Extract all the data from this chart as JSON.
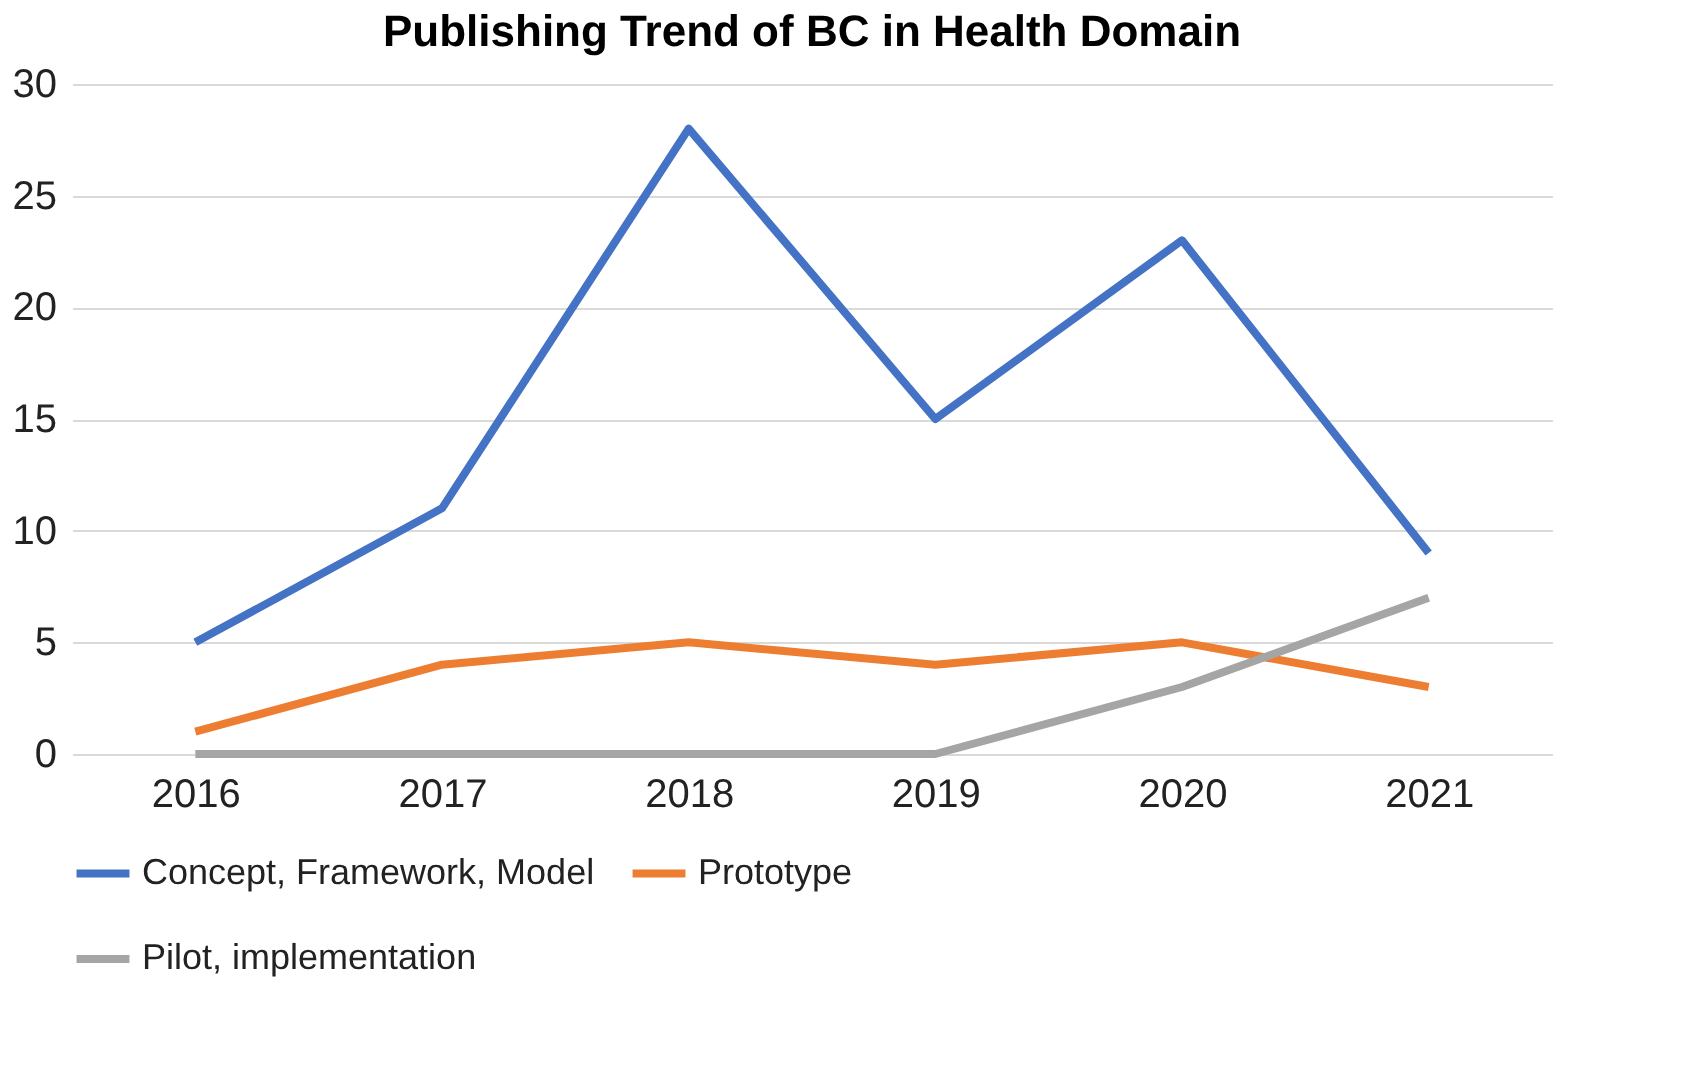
{
  "chart_data": {
    "type": "line",
    "title": "Publishing Trend of BC in Health Domain",
    "categories": [
      "2016",
      "2017",
      "2018",
      "2019",
      "2020",
      "2021"
    ],
    "series": [
      {
        "name": "Concept, Framework, Model",
        "color": "#4472c4",
        "values": [
          5,
          11,
          28,
          15,
          23,
          9
        ]
      },
      {
        "name": "Prototype",
        "color": "#ed7d31",
        "values": [
          1,
          4,
          5,
          4,
          5,
          3
        ]
      },
      {
        "name": "Pilot, implementation",
        "color": "#a5a5a5",
        "values": [
          0,
          0,
          0,
          0,
          3,
          7
        ]
      }
    ],
    "ylim": [
      0,
      30
    ],
    "yticks": [
      0,
      5,
      10,
      15,
      20,
      25,
      30
    ],
    "grid": "y",
    "legend": "bottom",
    "marker": "none",
    "line_style": "solid"
  }
}
